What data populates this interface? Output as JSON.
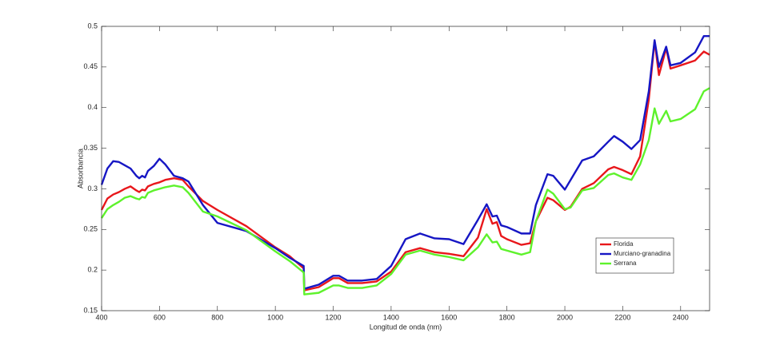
{
  "chart_data": {
    "type": "line",
    "xlabel": "Longitud de onda (nm)",
    "ylabel": "Absorbancia",
    "x": [
      400,
      420,
      440,
      460,
      480,
      500,
      520,
      530,
      540,
      550,
      560,
      580,
      600,
      620,
      650,
      680,
      700,
      750,
      800,
      900,
      1000,
      1050,
      1098,
      1100,
      1150,
      1200,
      1220,
      1250,
      1300,
      1350,
      1400,
      1450,
      1500,
      1550,
      1600,
      1650,
      1700,
      1730,
      1750,
      1765,
      1780,
      1800,
      1850,
      1880,
      1900,
      1940,
      1960,
      2000,
      2020,
      2060,
      2100,
      2150,
      2170,
      2200,
      2230,
      2260,
      2290,
      2310,
      2325,
      2350,
      2365,
      2400,
      2450,
      2480,
      2500
    ],
    "series": [
      {
        "name": "Florida",
        "color": "#e8171b",
        "values": [
          0.274,
          0.288,
          0.293,
          0.296,
          0.3,
          0.303,
          0.298,
          0.296,
          0.299,
          0.298,
          0.303,
          0.306,
          0.308,
          0.311,
          0.313,
          0.311,
          0.303,
          0.285,
          0.274,
          0.254,
          0.228,
          0.217,
          0.202,
          0.175,
          0.179,
          0.19,
          0.19,
          0.184,
          0.184,
          0.186,
          0.198,
          0.222,
          0.227,
          0.222,
          0.22,
          0.217,
          0.24,
          0.275,
          0.257,
          0.259,
          0.242,
          0.238,
          0.231,
          0.233,
          0.26,
          0.289,
          0.286,
          0.274,
          0.278,
          0.3,
          0.307,
          0.324,
          0.327,
          0.323,
          0.318,
          0.34,
          0.41,
          0.482,
          0.44,
          0.473,
          0.448,
          0.452,
          0.458,
          0.469,
          0.465
        ]
      },
      {
        "name": "Murciano-granadina",
        "color": "#1616c4",
        "values": [
          0.305,
          0.325,
          0.334,
          0.333,
          0.329,
          0.325,
          0.316,
          0.313,
          0.316,
          0.314,
          0.322,
          0.328,
          0.337,
          0.33,
          0.316,
          0.313,
          0.309,
          0.28,
          0.258,
          0.248,
          0.227,
          0.215,
          0.205,
          0.177,
          0.182,
          0.193,
          0.193,
          0.187,
          0.187,
          0.189,
          0.205,
          0.238,
          0.245,
          0.239,
          0.238,
          0.232,
          0.262,
          0.281,
          0.266,
          0.267,
          0.255,
          0.253,
          0.245,
          0.245,
          0.28,
          0.318,
          0.316,
          0.299,
          0.311,
          0.335,
          0.34,
          0.358,
          0.365,
          0.358,
          0.349,
          0.36,
          0.42,
          0.483,
          0.45,
          0.475,
          0.452,
          0.455,
          0.468,
          0.488,
          0.488
        ]
      },
      {
        "name": "Serrana",
        "color": "#5ef22c",
        "values": [
          0.264,
          0.275,
          0.28,
          0.284,
          0.289,
          0.291,
          0.288,
          0.287,
          0.29,
          0.289,
          0.295,
          0.298,
          0.3,
          0.302,
          0.304,
          0.302,
          0.295,
          0.272,
          0.266,
          0.249,
          0.223,
          0.211,
          0.197,
          0.17,
          0.172,
          0.181,
          0.181,
          0.178,
          0.178,
          0.181,
          0.195,
          0.219,
          0.224,
          0.219,
          0.216,
          0.212,
          0.228,
          0.244,
          0.234,
          0.235,
          0.226,
          0.224,
          0.219,
          0.222,
          0.26,
          0.299,
          0.294,
          0.275,
          0.277,
          0.298,
          0.301,
          0.317,
          0.319,
          0.314,
          0.311,
          0.33,
          0.36,
          0.399,
          0.38,
          0.396,
          0.383,
          0.386,
          0.398,
          0.42,
          0.424
        ]
      }
    ],
    "xlim": [
      400,
      2500
    ],
    "xticks": [
      400,
      600,
      800,
      1000,
      1200,
      1400,
      1600,
      1800,
      2000,
      2200,
      2400
    ],
    "ylim": [
      0.15,
      0.5
    ],
    "yticks": [
      0.15,
      0.2,
      0.25,
      0.3,
      0.35,
      0.4,
      0.45,
      0.5
    ],
    "legend": "east",
    "box": true
  }
}
